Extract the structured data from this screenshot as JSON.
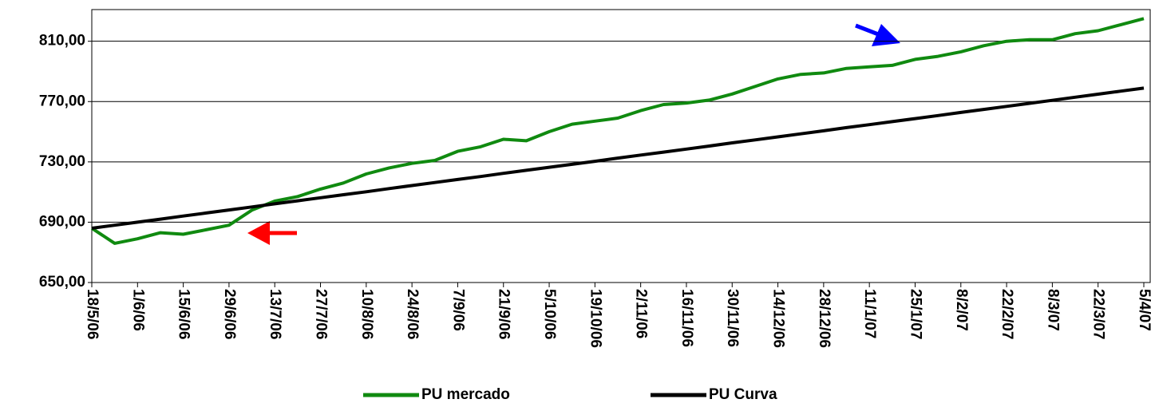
{
  "chart_data": {
    "type": "line",
    "categories": [
      "18/5/06",
      null,
      "1/6/06",
      null,
      "15/6/06",
      null,
      "29/6/06",
      null,
      "13/7/06",
      null,
      "27/7/06",
      null,
      "10/8/06",
      null,
      "24/8/06",
      null,
      "7/9/06",
      null,
      "21/9/06",
      null,
      "5/10/06",
      null,
      "19/10/06",
      null,
      "2/11/06",
      null,
      "16/11/06",
      null,
      "30/11/06",
      null,
      "14/12/06",
      null,
      "28/12/06",
      null,
      "11/1/07",
      null,
      "25/1/07",
      null,
      "8/2/07",
      null,
      "22/2/07",
      null,
      "8/3/07",
      null,
      "22/3/07",
      null,
      "5/4/07"
    ],
    "series": [
      {
        "name": "PU mercado",
        "color": "#108a10",
        "values": [
          686,
          676,
          679,
          683,
          682,
          685,
          688,
          698,
          704,
          707,
          712,
          716,
          722,
          726,
          729,
          731,
          737,
          740,
          745,
          744,
          750,
          755,
          757,
          759,
          764,
          768,
          769,
          771,
          775,
          780,
          785,
          788,
          789,
          792,
          793,
          794,
          798,
          800,
          803,
          807,
          810,
          811,
          811,
          815,
          817,
          821,
          825
        ]
      },
      {
        "name": "PU Curva",
        "color": "#000000",
        "values": [
          686,
          688,
          690,
          692,
          694.1,
          696.1,
          698.1,
          700.1,
          702.2,
          704.2,
          706.2,
          708.2,
          710.2,
          712.3,
          714.3,
          716.3,
          718.3,
          720.3,
          722.4,
          724.4,
          726.4,
          728.4,
          730.4,
          732.5,
          734.5,
          736.5,
          738.5,
          740.5,
          742.6,
          744.6,
          746.6,
          748.6,
          750.6,
          752.7,
          754.7,
          756.7,
          758.7,
          760.7,
          762.8,
          764.8,
          766.8,
          768.8,
          770.8,
          772.9,
          774.9,
          776.9,
          778.9
        ]
      }
    ],
    "ylim": [
      650,
      831
    ],
    "yticks": [
      {
        "value": 650,
        "label": "650,00"
      },
      {
        "value": 690,
        "label": "690,00"
      },
      {
        "value": 730,
        "label": "730,00"
      },
      {
        "value": 770,
        "label": "770,00"
      },
      {
        "value": 810,
        "label": "810,00"
      }
    ],
    "grid": true,
    "legend": "bottom"
  }
}
